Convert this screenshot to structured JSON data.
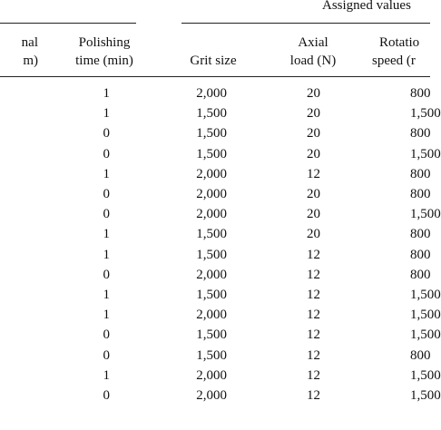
{
  "table": {
    "group_header": "Assigned values",
    "columns": [
      {
        "line1": "nal",
        "line2": "m)"
      },
      {
        "line1": "Polishing",
        "line2": "time (min)"
      },
      {
        "line1": "",
        "line2": "Grit size"
      },
      {
        "line1": "Axial",
        "line2": "load (N)"
      },
      {
        "line1": "Rotatio",
        "line2": "speed (r"
      }
    ],
    "rows": [
      [
        "1",
        "2,000",
        "20",
        "800"
      ],
      [
        "1",
        "1,500",
        "20",
        "1,500"
      ],
      [
        "0",
        "1,500",
        "20",
        "800"
      ],
      [
        "0",
        "1,500",
        "20",
        "1,500"
      ],
      [
        "1",
        "2,000",
        "12",
        "800"
      ],
      [
        "0",
        "2,000",
        "20",
        "800"
      ],
      [
        "0",
        "2,000",
        "20",
        "1,500"
      ],
      [
        "1",
        "1,500",
        "20",
        "800"
      ],
      [
        "1",
        "1,500",
        "12",
        "800"
      ],
      [
        "0",
        "2,000",
        "12",
        "800"
      ],
      [
        "1",
        "1,500",
        "12",
        "1,500"
      ],
      [
        "1",
        "2,000",
        "12",
        "1,500"
      ],
      [
        "0",
        "1,500",
        "12",
        "1,500"
      ],
      [
        "0",
        "1,500",
        "12",
        "800"
      ],
      [
        "1",
        "2,000",
        "12",
        "1,500"
      ],
      [
        "0",
        "2,000",
        "12",
        "1,500"
      ]
    ]
  }
}
